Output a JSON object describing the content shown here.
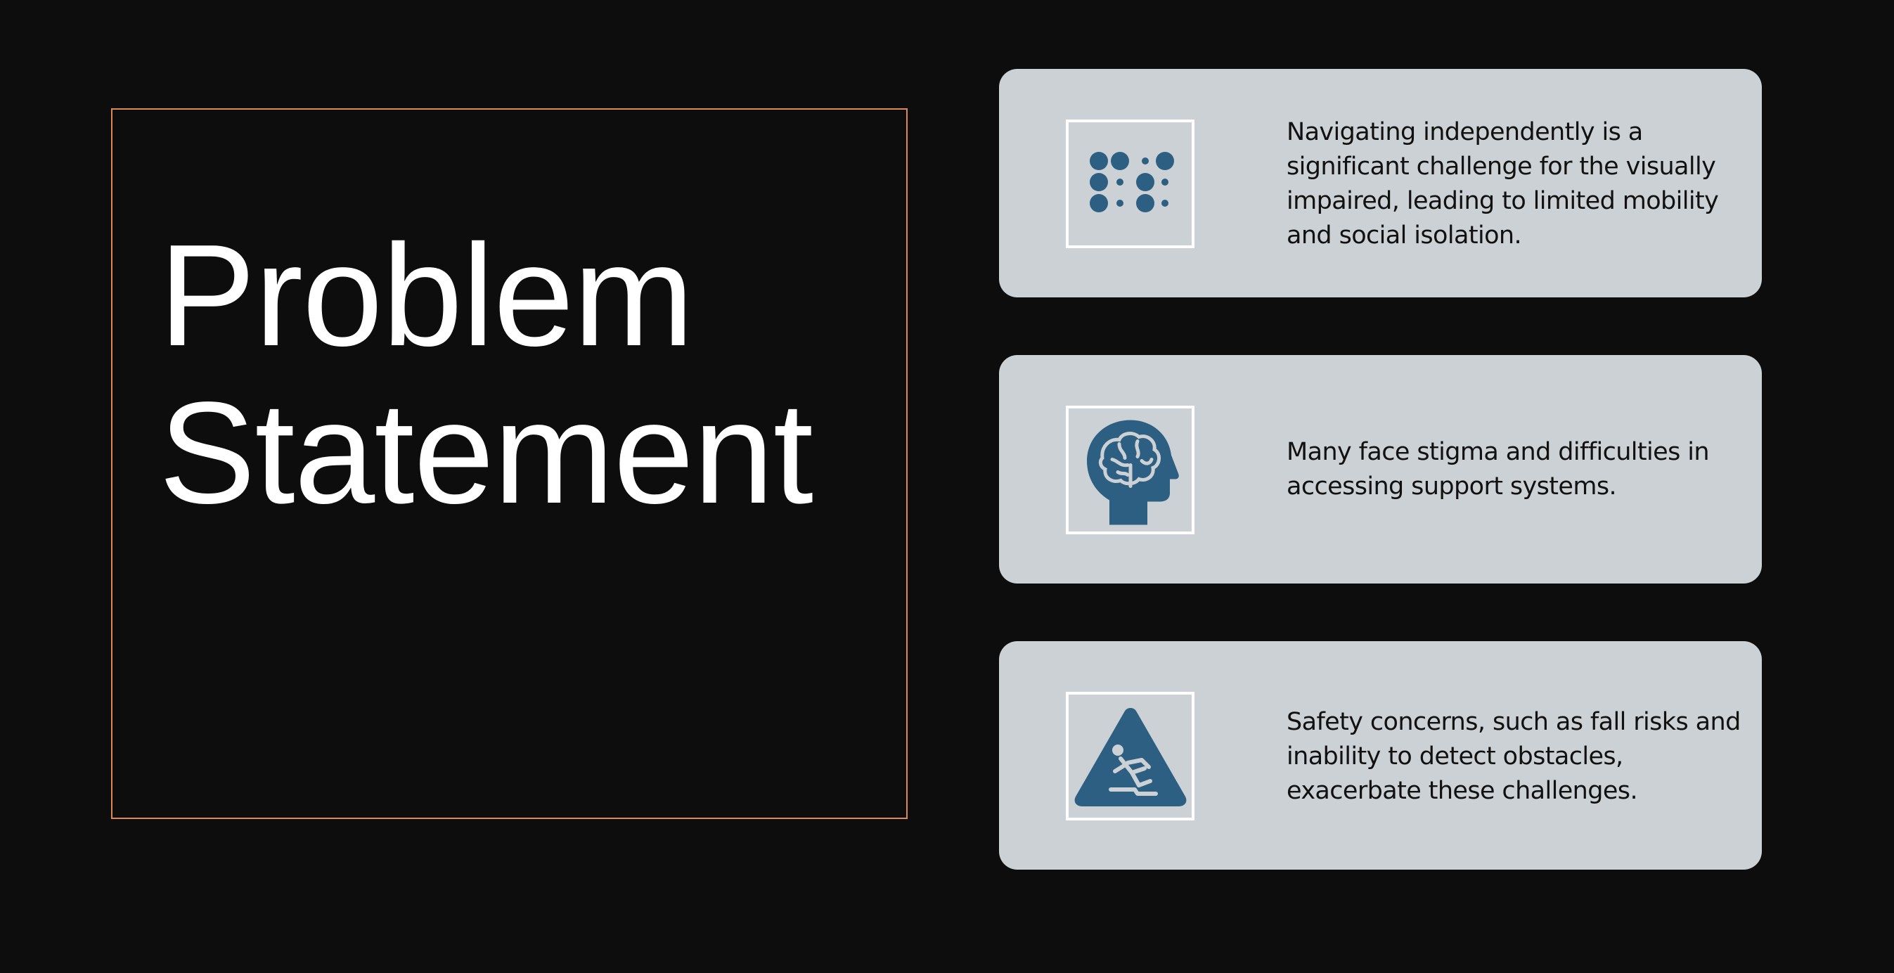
{
  "slide": {
    "title_line1": "Problem",
    "title_line2": "Statement"
  },
  "cards": [
    {
      "icon": "braille-icon",
      "text": "Navigating independently is a significant challenge for the visually impaired, leading to limited mobility and social isolation."
    },
    {
      "icon": "head-brain-icon",
      "text": "Many face stigma and difficulties in accessing support systems."
    },
    {
      "icon": "slip-hazard-warning-icon",
      "text": "Safety concerns, such as fall risks and inability to detect obstacles, exacerbate these challenges."
    }
  ],
  "colors": {
    "background": "#0d0d0d",
    "frame_border": "#d98a55",
    "card_background": "#ccd1d5",
    "icon_color": "#2c5f82",
    "title_color": "#ffffff"
  }
}
